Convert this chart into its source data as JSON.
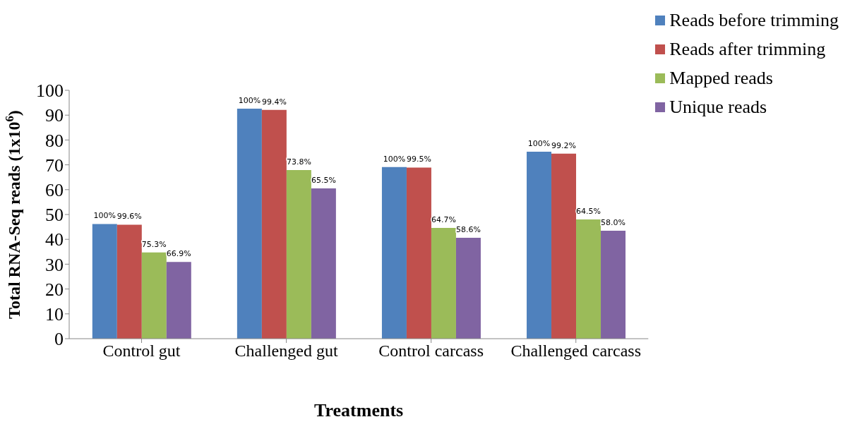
{
  "chart_data": {
    "type": "bar",
    "xlabel": "Treatments",
    "ylabel": "Total RNA-Seq reads (1x10$^{6}$)",
    "categories": [
      "Control gut",
      "Challenged gut",
      "Control carcass",
      "Challenged carcass"
    ],
    "series": [
      {
        "name": "Reads before trimming",
        "color": "#4f81bd",
        "values": [
          46.2,
          92.6,
          69.1,
          75.3
        ]
      },
      {
        "name": "Reads after  trimming",
        "color": "#c0504d",
        "values": [
          45.9,
          92.1,
          68.9,
          74.5
        ]
      },
      {
        "name": "Mapped reads",
        "color": "#9bbb59",
        "values": [
          34.7,
          67.9,
          44.6,
          48.0
        ]
      },
      {
        "name": "Unique reads",
        "color": "#8064a2",
        "values": [
          30.9,
          60.5,
          40.6,
          43.5
        ]
      }
    ],
    "annotations": [
      "100%",
      "99.6%",
      "75.3%",
      "66.9%",
      "100%",
      "99.4%",
      "73.8%",
      "65.5%",
      "100%",
      "99.5%",
      "64.7%",
      "58.6%",
      "100%",
      "99.2%",
      "64.5%",
      "58.0%"
    ],
    "ylim": [
      0,
      100
    ],
    "yticks": [
      0,
      10,
      20,
      30,
      40,
      50,
      60,
      70,
      80,
      90,
      100
    ],
    "grid": false,
    "legend": "top right"
  }
}
